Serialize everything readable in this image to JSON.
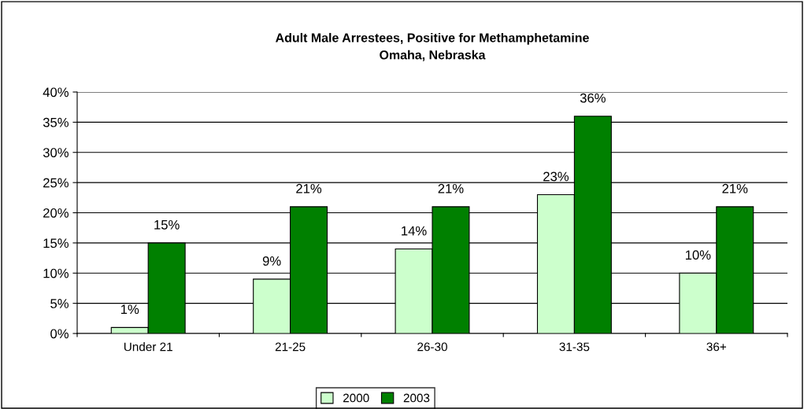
{
  "chart_data": {
    "type": "bar",
    "title": "Adult Male Arrestees, Positive for Methamphetamine\nOmaha, Nebraska",
    "categories": [
      "Under 21",
      "21-25",
      "26-30",
      "31-35",
      "36+"
    ],
    "series": [
      {
        "name": "2000",
        "color": "#ccffcc",
        "values": [
          1,
          9,
          14,
          23,
          10
        ],
        "value_labels": [
          "1%",
          "9%",
          "14%",
          "23%",
          "10%"
        ]
      },
      {
        "name": "2003",
        "color": "#008000",
        "values": [
          15,
          21,
          21,
          36,
          21
        ],
        "value_labels": [
          "15%",
          "21%",
          "21%",
          "36%",
          "21%"
        ]
      }
    ],
    "ylim": [
      0,
      40
    ],
    "yticks": [
      {
        "value": 0,
        "label": "0%"
      },
      {
        "value": 5,
        "label": "5%"
      },
      {
        "value": 10,
        "label": "10%"
      },
      {
        "value": 15,
        "label": "15%"
      },
      {
        "value": 20,
        "label": "20%"
      },
      {
        "value": 25,
        "label": "25%"
      },
      {
        "value": 30,
        "label": "30%"
      },
      {
        "value": 35,
        "label": "35%"
      },
      {
        "value": 40,
        "label": "40%"
      }
    ],
    "grid": "y",
    "legend": "bottom"
  }
}
